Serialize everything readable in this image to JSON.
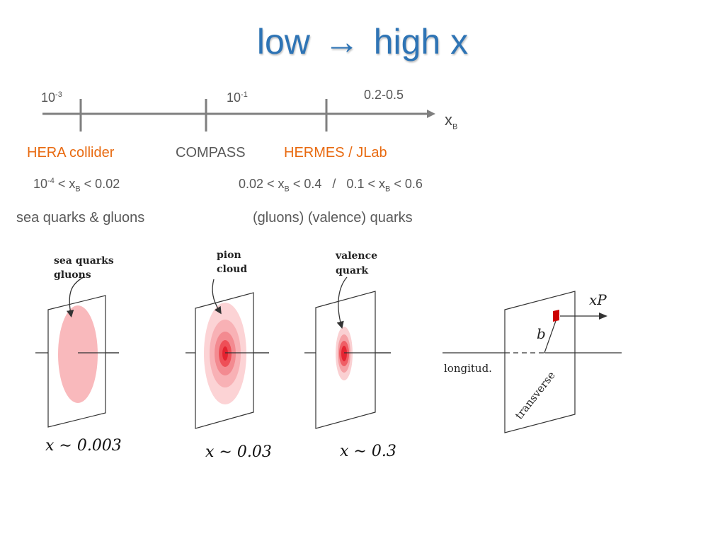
{
  "title": {
    "left": "low",
    "arrow": "→",
    "right": "high x"
  },
  "axis": {
    "ticks": [
      {
        "base": "10",
        "exp": "-3"
      },
      {
        "base": "10",
        "exp": "-1"
      },
      {
        "text": "0.2-0.5"
      }
    ],
    "var": {
      "main": "x",
      "sub": "B"
    }
  },
  "experiments": {
    "hera": "HERA collider",
    "compass": "COMPASS",
    "hermes": "HERMES / JLab"
  },
  "ranges": {
    "hera": {
      "a": "10",
      "exp": "-4",
      "b": " < x",
      "sub": "B",
      "c": " < 0.02"
    },
    "hermes": {
      "a": "0.02 < x",
      "sub": "B",
      "b": " < 0.4   /   0.1 < x",
      "sub2": "B",
      "c": " < 0.6"
    }
  },
  "descriptions": {
    "left": "sea quarks & gluons",
    "right": "(gluons) (valence) quarks"
  },
  "panels": [
    {
      "label_lines": [
        "sea quarks",
        "gluons"
      ],
      "caption": "x ∼ 0.003"
    },
    {
      "label_lines": [
        "pion",
        "cloud"
      ],
      "caption": "x ∼ 0.03"
    },
    {
      "label_lines": [
        "valence",
        "quark"
      ],
      "caption": "x ∼ 0.3"
    }
  ],
  "kinematics": {
    "xP": "xP",
    "b": "b",
    "longitudinal": "longitud.",
    "transverse": "transverse"
  }
}
